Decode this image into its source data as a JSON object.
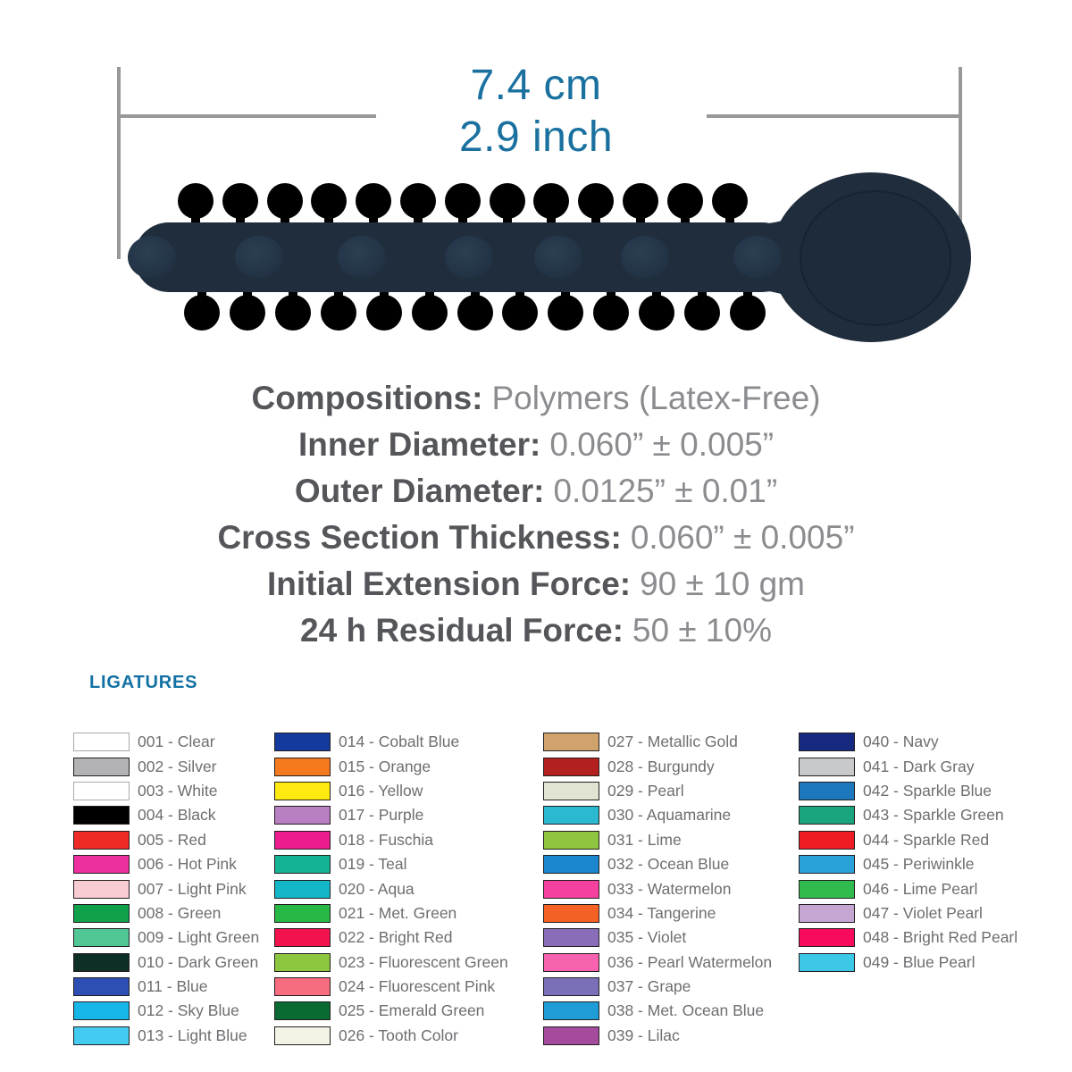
{
  "dimension": {
    "cm": "7.4 cm",
    "inch": "2.9 inch"
  },
  "specs": [
    {
      "label": "Compositions:",
      "value": "Polymers (Latex-Free)"
    },
    {
      "label": "Inner Diameter:",
      "value": "0.060” ± 0.005”"
    },
    {
      "label": "Outer Diameter:",
      "value": "0.0125” ± 0.01”"
    },
    {
      "label": "Cross Section Thickness:",
      "value": "0.060” ± 0.005”"
    },
    {
      "label": "Initial Extension Force:",
      "value": "90 ± 10 gm"
    },
    {
      "label": "24 h Residual Force:",
      "value": "50 ± 10%"
    }
  ],
  "ligatures": {
    "heading": "LIGATURES",
    "columns": [
      [
        {
          "code": "001",
          "name": "Clear",
          "hex": "#FFFFFF",
          "border": "#A7A9AC"
        },
        {
          "code": "002",
          "name": "Silver",
          "hex": "#B3B3B5"
        },
        {
          "code": "003",
          "name": "White",
          "hex": "#FFFFFF",
          "border": "#A7A9AC"
        },
        {
          "code": "004",
          "name": "Black",
          "hex": "#000000"
        },
        {
          "code": "005",
          "name": "Red",
          "hex": "#EE2B24"
        },
        {
          "code": "006",
          "name": "Hot Pink",
          "hex": "#EE2F9F"
        },
        {
          "code": "007",
          "name": "Light Pink",
          "hex": "#F9CBD3"
        },
        {
          "code": "008",
          "name": "Green",
          "hex": "#12A14B"
        },
        {
          "code": "009",
          "name": "Light Green",
          "hex": "#52C796"
        },
        {
          "code": "010",
          "name": "Dark Green",
          "hex": "#0D2F25"
        },
        {
          "code": "011",
          "name": "Blue",
          "hex": "#2D4FB4"
        },
        {
          "code": "012",
          "name": "Sky Blue",
          "hex": "#16B6E8"
        },
        {
          "code": "013",
          "name": "Light Blue",
          "hex": "#44CBF1"
        }
      ],
      [
        {
          "code": "014",
          "name": "Cobalt Blue",
          "hex": "#143A9D"
        },
        {
          "code": "015",
          "name": "Orange",
          "hex": "#F5791D"
        },
        {
          "code": "016",
          "name": "Yellow",
          "hex": "#FCEA10"
        },
        {
          "code": "017",
          "name": "Purple",
          "hex": "#B87FC3"
        },
        {
          "code": "018",
          "name": "Fuschia",
          "hex": "#EC1C8F"
        },
        {
          "code": "019",
          "name": "Teal",
          "hex": "#14B395"
        },
        {
          "code": "020",
          "name": "Aqua",
          "hex": "#14B7C8"
        },
        {
          "code": "021",
          "name": "Met. Green",
          "hex": "#28B845"
        },
        {
          "code": "022",
          "name": "Bright Red",
          "hex": "#F2134E"
        },
        {
          "code": "023",
          "name": "Fluorescent Green",
          "hex": "#8DC63F"
        },
        {
          "code": "024",
          "name": "Fluorescent Pink",
          "hex": "#F76D80"
        },
        {
          "code": "025",
          "name": "Emerald Green",
          "hex": "#0A6B32"
        },
        {
          "code": "026",
          "name": "Tooth Color",
          "hex": "#F3F4E5"
        }
      ],
      [
        {
          "code": "027",
          "name": "Metallic Gold",
          "hex": "#CFA36B"
        },
        {
          "code": "028",
          "name": "Burgundy",
          "hex": "#B2201F"
        },
        {
          "code": "029",
          "name": "Pearl",
          "hex": "#E2E4D3"
        },
        {
          "code": "030",
          "name": "Aquamarine",
          "hex": "#2AB9D1"
        },
        {
          "code": "031",
          "name": "Lime",
          "hex": "#8EC63F"
        },
        {
          "code": "032",
          "name": "Ocean Blue",
          "hex": "#1A86CE"
        },
        {
          "code": "033",
          "name": "Watermelon",
          "hex": "#F4409E"
        },
        {
          "code": "034",
          "name": "Tangerine",
          "hex": "#F56124"
        },
        {
          "code": "035",
          "name": "Violet",
          "hex": "#8A6DB9"
        },
        {
          "code": "036",
          "name": "Pearl Watermelon",
          "hex": "#F763AE"
        },
        {
          "code": "037",
          "name": "Grape",
          "hex": "#7A70B8"
        },
        {
          "code": "038",
          "name": "Met. Ocean Blue",
          "hex": "#1F9CD5"
        },
        {
          "code": "039",
          "name": "Lilac",
          "hex": "#A44B9E"
        }
      ],
      [
        {
          "code": "040",
          "name": "Navy",
          "hex": "#14297F"
        },
        {
          "code": "041",
          "name": "Dark Gray",
          "hex": "#C8C9CB"
        },
        {
          "code": "042",
          "name": "Sparkle Blue",
          "hex": "#1C77BD"
        },
        {
          "code": "043",
          "name": "Sparkle Green",
          "hex": "#1AA57F"
        },
        {
          "code": "044",
          "name": "Sparkle Red",
          "hex": "#EE1C25"
        },
        {
          "code": "045",
          "name": "Periwinkle",
          "hex": "#2BA1DA"
        },
        {
          "code": "046",
          "name": "Lime Pearl",
          "hex": "#31BA4D"
        },
        {
          "code": "047",
          "name": "Violet Pearl",
          "hex": "#C5A6D3"
        },
        {
          "code": "048",
          "name": "Bright Red Pearl",
          "hex": "#F60B5F"
        },
        {
          "code": "049",
          "name": "Blue Pearl",
          "hex": "#3CC8E6"
        }
      ]
    ]
  },
  "colors": {
    "accent-blue": "#1A719F",
    "heading-blue": "#1272A4",
    "line-gray": "#97989A",
    "stick-navy": "#1F2D3C",
    "spec-label-gray": "#54565A",
    "spec-value-gray": "#8A8C8F",
    "list-text-gray": "#6D6E71",
    "swatch-border": "#231F20"
  }
}
